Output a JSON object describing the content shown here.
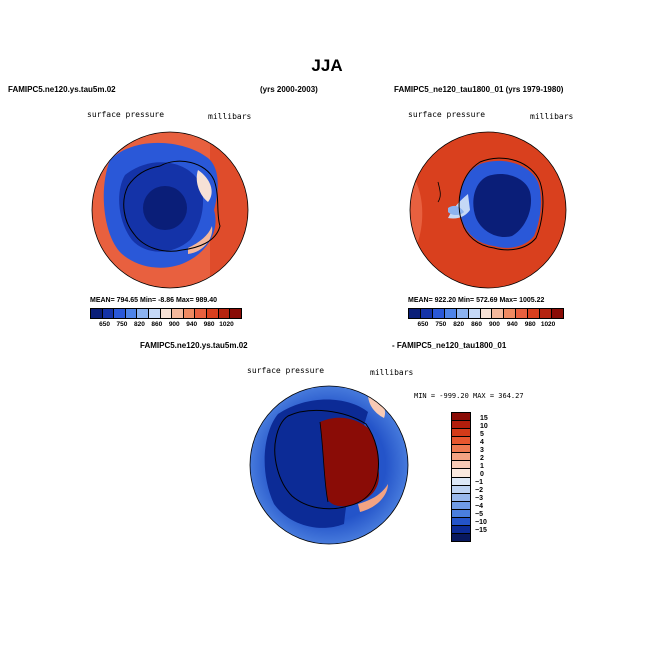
{
  "title": "JJA",
  "panel1": {
    "case": "FAMIPC5.ne120.ys.tau5m.02",
    "years": "(yrs 2000-2003)",
    "variable": "surface pressure",
    "units": "millibars",
    "stats": "MEAN= 794.65   Min=    -8.86   Max= 989.40",
    "colorbar_labels": [
      "650",
      "750",
      "820",
      "860",
      "900",
      "940",
      "980",
      "1020"
    ]
  },
  "panel2": {
    "case": "FAMIPC5_ne120_tau1800_01 (yrs 1979-1980)",
    "variable": "surface pressure",
    "units": "millibars",
    "stats": "MEAN= 922.20   Min= 572.69   Max= 1005.22",
    "colorbar_labels": [
      "650",
      "750",
      "820",
      "860",
      "900",
      "940",
      "980",
      "1020"
    ]
  },
  "panel3": {
    "case_left": "FAMIPC5.ne120.ys.tau5m.02",
    "case_right": "- FAMIPC5_ne120_tau1800_01",
    "variable": "surface pressure",
    "units": "millibars",
    "stats": "MIN = -999.20  MAX = 364.27",
    "colorbar_labels": [
      "15",
      "10",
      "5",
      "4",
      "3",
      "2",
      "1",
      "0",
      "−1",
      "−2",
      "−3",
      "−4",
      "−5",
      "−10",
      "−15"
    ]
  },
  "colors": {
    "abs_scale": [
      "#0a1e78",
      "#1433a8",
      "#2a58d8",
      "#4f84e8",
      "#8db3f0",
      "#c5d8f6",
      "#f6e1d6",
      "#f4b89c",
      "#ef8a62",
      "#e8603f",
      "#d9401e",
      "#b52410",
      "#8a0c06"
    ],
    "diff_scale": [
      "#8a0c06",
      "#b21e0c",
      "#d33b19",
      "#e7572f",
      "#ee7a52",
      "#f3a383",
      "#f8cab5",
      "#fbe9df",
      "#dde8f7",
      "#bed3f2",
      "#98b8ec",
      "#6f9be6",
      "#4a7ede",
      "#2454c9",
      "#0c2b96",
      "#08185e"
    ]
  }
}
